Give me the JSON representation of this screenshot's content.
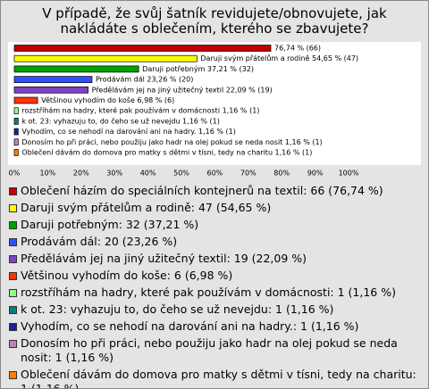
{
  "chart_data": {
    "type": "bar",
    "orientation": "horizontal",
    "title": "V případě, že svůj šatník revidujete/obnovujete, jak nakládáte s oblečením, kterého se zbavujete?",
    "categories": [
      "Oblečení házím do speciálních kontejnerů na textil: 66 (76,74 %)",
      "Daruji svým přátelům a rodině: 47 (54,65 %)",
      "Daruji potřebným: 32 (37,21 %)",
      "Prodávám dál: 20 (23,26 %)",
      "Předělávám jej na jiný užitečný textil: 19 (22,09 %)",
      "Většinou vyhodím do koše: 6 (6,98 %)",
      "rozstříhám na hadry, které pak používám v domácnosti: 1 (1,16 %)",
      "k ot. 23: vyhazuju to, do čeho se už nevejdu: 1 (1,16 %)",
      "Vyhodím, co se nehodí na darování ani na hadry.: 1 (1,16 %)",
      "Donosím ho při práci, nebo použiju jako hadr na olej pokud se neda nosit: 1 (1,16 %)",
      "Oblečení dávám do domova pro matky s dětmi v tísni, tedy na charitu: 1 (1,16 %)"
    ],
    "values": [
      76.74,
      54.65,
      37.21,
      23.26,
      22.09,
      6.98,
      1.16,
      1.16,
      1.16,
      1.16,
      1.16
    ],
    "value_labels": [
      "76,74 % (66)",
      "Daruji svým přátelům a rodině 54,65 % (47)",
      "Daruji potřebným 37,21 % (32)",
      "Prodávám dál 23,26 % (20)",
      "Předělávám jej na jiný užitečný textil 22,09 % (19)",
      "Většinou vyhodím do koše 6,98 % (6)",
      "rozstříhám na hadry, které pak používám v domácnosti 1,16 % (1)",
      "k ot. 23: vyhazuju to, do čeho se už nevejdu 1,16 % (1)",
      "Vyhodím, co se nehodí na darování ani na hadry. 1,16 % (1)",
      "Donosím ho při práci, nebo použiju jako hadr na olej pokud se neda nosit 1,16 % (1)",
      "Oblečení dávám do domova pro matky s dětmi v tísni, tedy na charitu 1,16 % (1)"
    ],
    "colors": [
      "#c00000",
      "#ffff00",
      "#00a000",
      "#3050ff",
      "#8040c0",
      "#ff3300",
      "#90ff90",
      "#008080",
      "#202090",
      "#c080c0",
      "#ff8000"
    ],
    "xlim": [
      0,
      100
    ],
    "xticks": [
      {
        "value": 0,
        "label": "0%"
      },
      {
        "value": 10,
        "label": "10%"
      },
      {
        "value": 20,
        "label": "20%"
      },
      {
        "value": 30,
        "label": "30%"
      },
      {
        "value": 40,
        "label": "40%"
      },
      {
        "value": 50,
        "label": "50%"
      },
      {
        "value": 60,
        "label": "60%"
      },
      {
        "value": 70,
        "label": "70%"
      },
      {
        "value": 80,
        "label": "80%"
      },
      {
        "value": 90,
        "label": "90%"
      },
      {
        "value": 100,
        "label": "100%"
      }
    ]
  }
}
